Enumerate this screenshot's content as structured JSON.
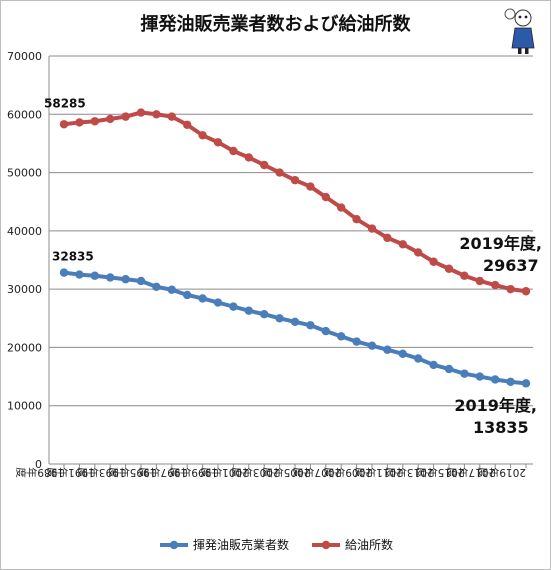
{
  "chart_data": {
    "type": "line",
    "title": "揮発油販売業者数および給油所数",
    "xlabel": "",
    "ylabel": "",
    "ylim": [
      0,
      70000
    ],
    "yticks": [
      0,
      10000,
      20000,
      30000,
      40000,
      50000,
      60000,
      70000
    ],
    "grid": true,
    "legend_position": "bottom",
    "x": [
      "1989年度",
      "1990年度",
      "1991年度",
      "1992年度",
      "1993年度",
      "1994年度",
      "1995年度",
      "1996年度",
      "1997年度",
      "1998年度",
      "1999年度",
      "2000年度",
      "2001年度",
      "2002年度",
      "2003年度",
      "2004年度",
      "2005年度",
      "2006年度",
      "2007年度",
      "2008年度",
      "2009年度",
      "2010年度",
      "2011年度",
      "2012年度",
      "2013年度",
      "2014年度",
      "2015年度",
      "2016年度",
      "2017年度",
      "2018年度",
      "2019年度"
    ],
    "tick_labels": [
      "1989年度",
      "1991年度",
      "1993年度",
      "1995年度",
      "1997年度",
      "1999年度",
      "2001年度",
      "2003年度",
      "2005年度",
      "2007年度",
      "2009年度",
      "2011年度",
      "2013年度",
      "2015年度",
      "2017年度",
      "2019年度"
    ],
    "series": [
      {
        "name": "揮発油販売業者数",
        "color": "#4a7ebb",
        "values": [
          32835,
          32500,
          32300,
          32000,
          31700,
          31400,
          30400,
          29900,
          29000,
          28400,
          27700,
          27000,
          26300,
          25700,
          25000,
          24400,
          23800,
          22800,
          21900,
          21000,
          20300,
          19600,
          18900,
          18100,
          17000,
          16300,
          15500,
          15000,
          14500,
          14100,
          13835
        ]
      },
      {
        "name": "給油所数",
        "color": "#be4b48",
        "values": [
          58285,
          58600,
          58800,
          59200,
          59600,
          60300,
          60000,
          59600,
          58200,
          56400,
          55200,
          53700,
          52600,
          51300,
          50000,
          48700,
          47600,
          45800,
          44000,
          42000,
          40400,
          38800,
          37700,
          36300,
          34700,
          33500,
          32300,
          31400,
          30700,
          30000,
          29637
        ]
      }
    ],
    "annotations": [
      {
        "label": "58285"
      },
      {
        "label": "32835"
      },
      {
        "line1": "2019年度,",
        "line2": "29637"
      },
      {
        "line1": "2019年度,",
        "line2": "13835"
      }
    ]
  }
}
